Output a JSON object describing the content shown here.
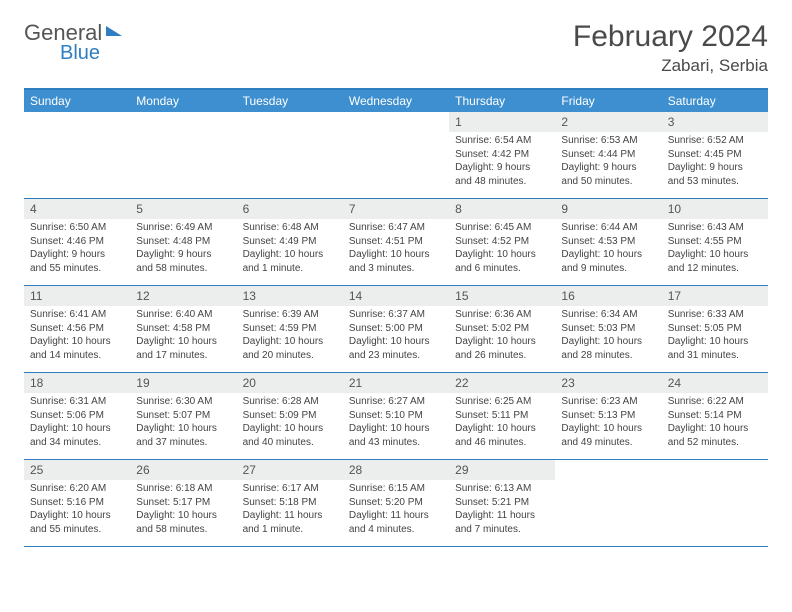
{
  "brand": {
    "part1": "General",
    "part2": "Blue"
  },
  "title": "February 2024",
  "location": "Zabari, Serbia",
  "colors": {
    "accent": "#2f7ec2",
    "header_bg": "#3d8fcf",
    "daynum_bg": "#eceded",
    "text": "#4a4a4a"
  },
  "dow": [
    "Sunday",
    "Monday",
    "Tuesday",
    "Wednesday",
    "Thursday",
    "Friday",
    "Saturday"
  ],
  "weeks": [
    [
      {
        "n": "",
        "sr": "",
        "ss": "",
        "dl": ""
      },
      {
        "n": "",
        "sr": "",
        "ss": "",
        "dl": ""
      },
      {
        "n": "",
        "sr": "",
        "ss": "",
        "dl": ""
      },
      {
        "n": "",
        "sr": "",
        "ss": "",
        "dl": ""
      },
      {
        "n": "1",
        "sr": "Sunrise: 6:54 AM",
        "ss": "Sunset: 4:42 PM",
        "dl": "Daylight: 9 hours and 48 minutes."
      },
      {
        "n": "2",
        "sr": "Sunrise: 6:53 AM",
        "ss": "Sunset: 4:44 PM",
        "dl": "Daylight: 9 hours and 50 minutes."
      },
      {
        "n": "3",
        "sr": "Sunrise: 6:52 AM",
        "ss": "Sunset: 4:45 PM",
        "dl": "Daylight: 9 hours and 53 minutes."
      }
    ],
    [
      {
        "n": "4",
        "sr": "Sunrise: 6:50 AM",
        "ss": "Sunset: 4:46 PM",
        "dl": "Daylight: 9 hours and 55 minutes."
      },
      {
        "n": "5",
        "sr": "Sunrise: 6:49 AM",
        "ss": "Sunset: 4:48 PM",
        "dl": "Daylight: 9 hours and 58 minutes."
      },
      {
        "n": "6",
        "sr": "Sunrise: 6:48 AM",
        "ss": "Sunset: 4:49 PM",
        "dl": "Daylight: 10 hours and 1 minute."
      },
      {
        "n": "7",
        "sr": "Sunrise: 6:47 AM",
        "ss": "Sunset: 4:51 PM",
        "dl": "Daylight: 10 hours and 3 minutes."
      },
      {
        "n": "8",
        "sr": "Sunrise: 6:45 AM",
        "ss": "Sunset: 4:52 PM",
        "dl": "Daylight: 10 hours and 6 minutes."
      },
      {
        "n": "9",
        "sr": "Sunrise: 6:44 AM",
        "ss": "Sunset: 4:53 PM",
        "dl": "Daylight: 10 hours and 9 minutes."
      },
      {
        "n": "10",
        "sr": "Sunrise: 6:43 AM",
        "ss": "Sunset: 4:55 PM",
        "dl": "Daylight: 10 hours and 12 minutes."
      }
    ],
    [
      {
        "n": "11",
        "sr": "Sunrise: 6:41 AM",
        "ss": "Sunset: 4:56 PM",
        "dl": "Daylight: 10 hours and 14 minutes."
      },
      {
        "n": "12",
        "sr": "Sunrise: 6:40 AM",
        "ss": "Sunset: 4:58 PM",
        "dl": "Daylight: 10 hours and 17 minutes."
      },
      {
        "n": "13",
        "sr": "Sunrise: 6:39 AM",
        "ss": "Sunset: 4:59 PM",
        "dl": "Daylight: 10 hours and 20 minutes."
      },
      {
        "n": "14",
        "sr": "Sunrise: 6:37 AM",
        "ss": "Sunset: 5:00 PM",
        "dl": "Daylight: 10 hours and 23 minutes."
      },
      {
        "n": "15",
        "sr": "Sunrise: 6:36 AM",
        "ss": "Sunset: 5:02 PM",
        "dl": "Daylight: 10 hours and 26 minutes."
      },
      {
        "n": "16",
        "sr": "Sunrise: 6:34 AM",
        "ss": "Sunset: 5:03 PM",
        "dl": "Daylight: 10 hours and 28 minutes."
      },
      {
        "n": "17",
        "sr": "Sunrise: 6:33 AM",
        "ss": "Sunset: 5:05 PM",
        "dl": "Daylight: 10 hours and 31 minutes."
      }
    ],
    [
      {
        "n": "18",
        "sr": "Sunrise: 6:31 AM",
        "ss": "Sunset: 5:06 PM",
        "dl": "Daylight: 10 hours and 34 minutes."
      },
      {
        "n": "19",
        "sr": "Sunrise: 6:30 AM",
        "ss": "Sunset: 5:07 PM",
        "dl": "Daylight: 10 hours and 37 minutes."
      },
      {
        "n": "20",
        "sr": "Sunrise: 6:28 AM",
        "ss": "Sunset: 5:09 PM",
        "dl": "Daylight: 10 hours and 40 minutes."
      },
      {
        "n": "21",
        "sr": "Sunrise: 6:27 AM",
        "ss": "Sunset: 5:10 PM",
        "dl": "Daylight: 10 hours and 43 minutes."
      },
      {
        "n": "22",
        "sr": "Sunrise: 6:25 AM",
        "ss": "Sunset: 5:11 PM",
        "dl": "Daylight: 10 hours and 46 minutes."
      },
      {
        "n": "23",
        "sr": "Sunrise: 6:23 AM",
        "ss": "Sunset: 5:13 PM",
        "dl": "Daylight: 10 hours and 49 minutes."
      },
      {
        "n": "24",
        "sr": "Sunrise: 6:22 AM",
        "ss": "Sunset: 5:14 PM",
        "dl": "Daylight: 10 hours and 52 minutes."
      }
    ],
    [
      {
        "n": "25",
        "sr": "Sunrise: 6:20 AM",
        "ss": "Sunset: 5:16 PM",
        "dl": "Daylight: 10 hours and 55 minutes."
      },
      {
        "n": "26",
        "sr": "Sunrise: 6:18 AM",
        "ss": "Sunset: 5:17 PM",
        "dl": "Daylight: 10 hours and 58 minutes."
      },
      {
        "n": "27",
        "sr": "Sunrise: 6:17 AM",
        "ss": "Sunset: 5:18 PM",
        "dl": "Daylight: 11 hours and 1 minute."
      },
      {
        "n": "28",
        "sr": "Sunrise: 6:15 AM",
        "ss": "Sunset: 5:20 PM",
        "dl": "Daylight: 11 hours and 4 minutes."
      },
      {
        "n": "29",
        "sr": "Sunrise: 6:13 AM",
        "ss": "Sunset: 5:21 PM",
        "dl": "Daylight: 11 hours and 7 minutes."
      },
      {
        "n": "",
        "sr": "",
        "ss": "",
        "dl": ""
      },
      {
        "n": "",
        "sr": "",
        "ss": "",
        "dl": ""
      }
    ]
  ]
}
